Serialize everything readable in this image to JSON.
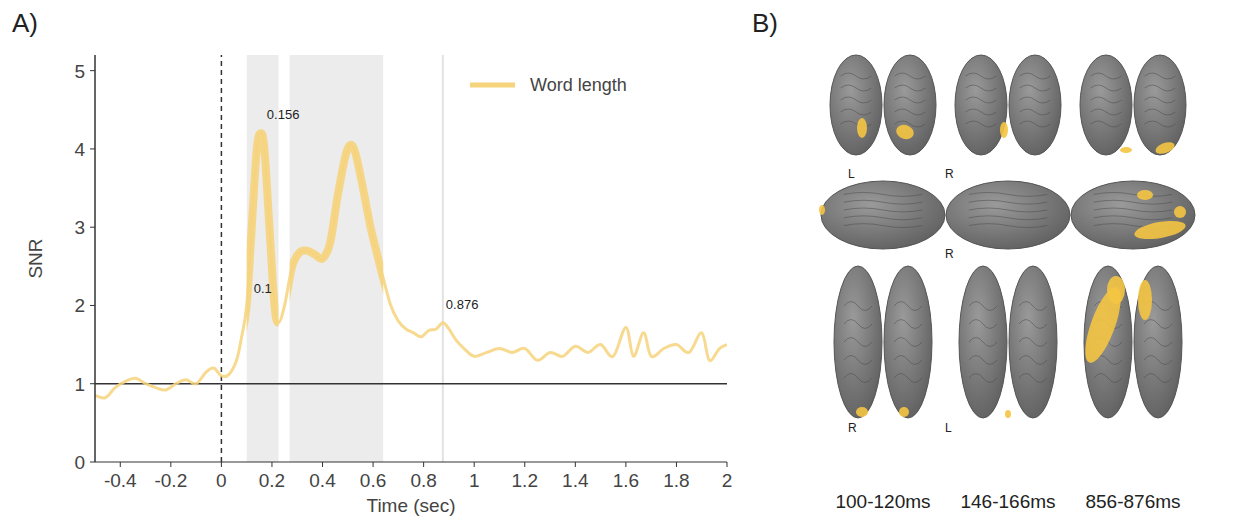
{
  "chart_data": {
    "type": "line",
    "panel_label": "A)",
    "x_label": "Time (sec)",
    "y_label": "SNR",
    "xlim": [
      -0.5,
      2
    ],
    "ylim": [
      0,
      5.2
    ],
    "xticks": [
      -0.4,
      -0.2,
      0,
      0.2,
      0.4,
      0.6,
      0.8,
      1,
      1.2,
      1.4,
      1.6,
      1.8,
      2
    ],
    "yticks": [
      0,
      1,
      2,
      3,
      4,
      5
    ],
    "grid": false,
    "legend": "upper right",
    "x": [
      -0.5,
      -0.46,
      -0.42,
      -0.38,
      -0.34,
      -0.3,
      -0.26,
      -0.22,
      -0.18,
      -0.14,
      -0.1,
      -0.06,
      -0.03,
      0,
      0.03,
      0.06,
      0.08,
      0.1,
      0.12,
      0.14,
      0.156,
      0.17,
      0.19,
      0.21,
      0.226,
      0.25,
      0.28,
      0.31,
      0.34,
      0.37,
      0.4,
      0.43,
      0.46,
      0.49,
      0.51,
      0.53,
      0.56,
      0.59,
      0.62,
      0.64,
      0.67,
      0.7,
      0.73,
      0.76,
      0.79,
      0.82,
      0.85,
      0.876,
      0.9,
      0.93,
      0.96,
      1.0,
      1.05,
      1.1,
      1.15,
      1.2,
      1.25,
      1.3,
      1.35,
      1.4,
      1.45,
      1.5,
      1.55,
      1.6,
      1.63,
      1.67,
      1.7,
      1.75,
      1.8,
      1.85,
      1.9,
      1.93,
      1.97,
      2.0
    ],
    "series": [
      {
        "name": "Word length",
        "color": "#f6d47d",
        "values": [
          0.85,
          0.82,
          0.95,
          1.03,
          1.07,
          1.0,
          0.95,
          0.92,
          1.0,
          1.05,
          1.0,
          1.15,
          1.2,
          1.1,
          1.12,
          1.3,
          1.6,
          2.0,
          3.0,
          4.0,
          4.2,
          4.0,
          3.0,
          2.0,
          1.78,
          2.0,
          2.5,
          2.68,
          2.7,
          2.65,
          2.6,
          2.8,
          3.4,
          3.9,
          4.05,
          3.95,
          3.5,
          3.0,
          2.6,
          2.35,
          2.0,
          1.8,
          1.7,
          1.65,
          1.6,
          1.68,
          1.7,
          1.78,
          1.7,
          1.55,
          1.45,
          1.35,
          1.4,
          1.45,
          1.4,
          1.45,
          1.3,
          1.4,
          1.35,
          1.48,
          1.4,
          1.5,
          1.35,
          1.72,
          1.35,
          1.65,
          1.35,
          1.45,
          1.5,
          1.4,
          1.65,
          1.3,
          1.45,
          1.5
        ]
      }
    ],
    "shaded_regions": [
      [
        0.1,
        0.226
      ],
      [
        0.27,
        0.64
      ]
    ],
    "highlight_lines": [
      0.876
    ],
    "reference_lines": [
      {
        "axis": "y",
        "value": 1,
        "line_style": "solid"
      },
      {
        "axis": "x",
        "value": 0,
        "line_style": "dashed"
      }
    ],
    "annotations": [
      {
        "text": "0.156",
        "x": 0.156,
        "y": 4.2
      },
      {
        "text": "0.1",
        "x": 0.1,
        "y": 2.0
      },
      {
        "text": "0.876",
        "x": 0.876,
        "y": 1.78
      }
    ]
  },
  "panel_b": {
    "panel_label": "B)",
    "time_windows": [
      "100-120ms",
      "146-166ms",
      "856-876ms"
    ],
    "view_labels": [
      [
        "L",
        "R"
      ],
      [
        "R"
      ],
      [
        "R",
        "L"
      ]
    ]
  }
}
